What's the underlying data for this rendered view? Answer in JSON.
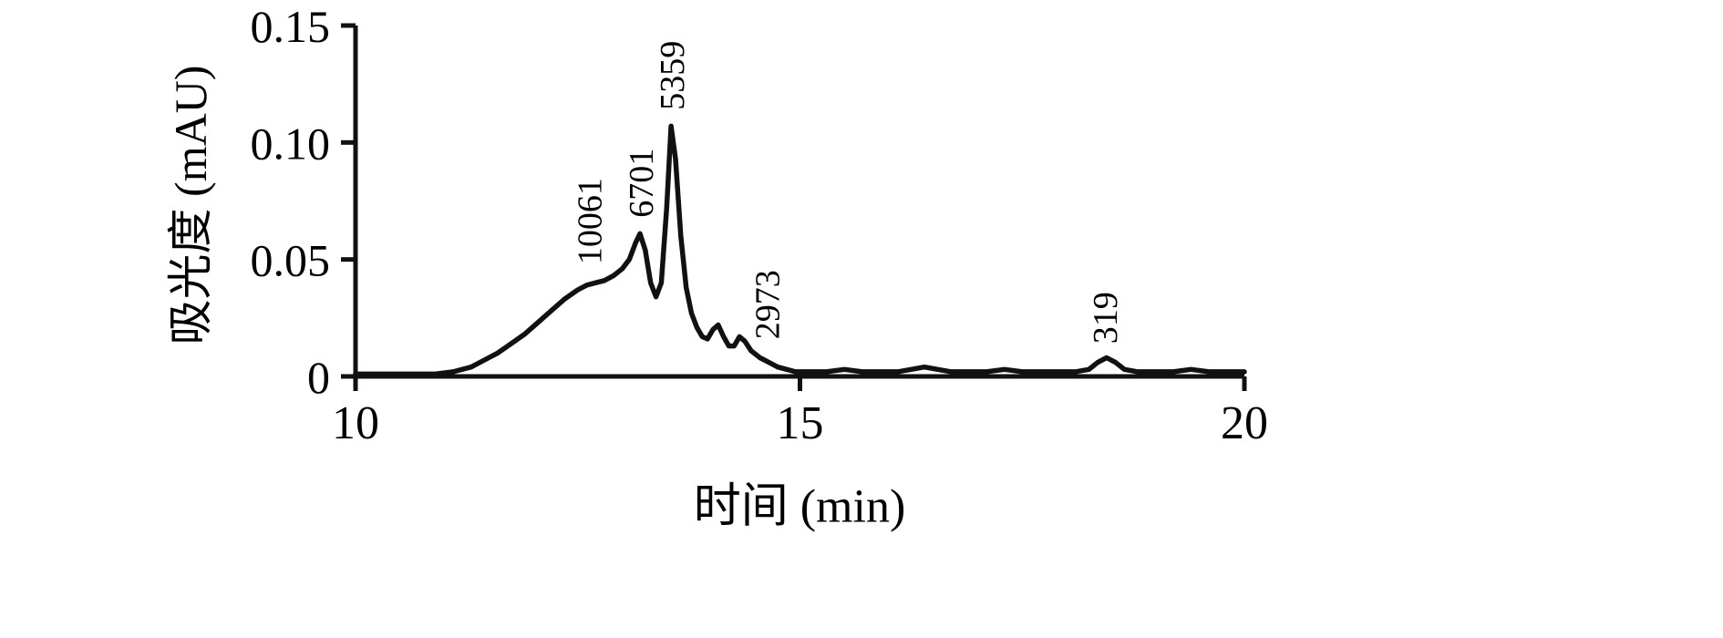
{
  "chart_data": {
    "type": "line",
    "title": "",
    "xlabel": "时间 (min)",
    "ylabel": "吸光度 (mAU)",
    "xlim": [
      10,
      20
    ],
    "ylim": [
      0,
      0.15
    ],
    "x_ticks": [
      10,
      15,
      20
    ],
    "x_tick_labels": [
      "10",
      "15",
      "20"
    ],
    "y_ticks": [
      0,
      0.05,
      0.1,
      0.15
    ],
    "y_tick_labels": [
      "0",
      "0.05",
      "0.10",
      "0.15"
    ],
    "grid": false,
    "legend": false,
    "line_color": "#111111",
    "axis_color": "#111111",
    "series": [
      {
        "name": "chromatogram",
        "x": [
          10.0,
          10.3,
          10.6,
          10.9,
          11.1,
          11.3,
          11.45,
          11.6,
          11.75,
          11.9,
          12.05,
          12.2,
          12.35,
          12.5,
          12.6,
          12.7,
          12.8,
          12.9,
          13.0,
          13.08,
          13.15,
          13.2,
          13.26,
          13.32,
          13.38,
          13.44,
          13.5,
          13.55,
          13.6,
          13.66,
          13.72,
          13.78,
          13.84,
          13.9,
          13.96,
          14.02,
          14.08,
          14.14,
          14.2,
          14.26,
          14.32,
          14.38,
          14.45,
          14.55,
          14.65,
          14.75,
          14.85,
          14.95,
          15.1,
          15.3,
          15.5,
          15.7,
          15.9,
          16.1,
          16.25,
          16.4,
          16.55,
          16.7,
          16.9,
          17.1,
          17.3,
          17.5,
          17.7,
          17.9,
          18.1,
          18.25,
          18.35,
          18.45,
          18.55,
          18.65,
          18.8,
          19.0,
          19.2,
          19.4,
          19.6,
          19.8,
          20.0
        ],
        "y": [
          0.001,
          0.001,
          0.001,
          0.001,
          0.002,
          0.004,
          0.007,
          0.01,
          0.014,
          0.018,
          0.023,
          0.028,
          0.033,
          0.037,
          0.039,
          0.04,
          0.041,
          0.043,
          0.046,
          0.05,
          0.057,
          0.061,
          0.054,
          0.04,
          0.034,
          0.04,
          0.072,
          0.107,
          0.093,
          0.06,
          0.038,
          0.027,
          0.021,
          0.017,
          0.016,
          0.02,
          0.022,
          0.017,
          0.013,
          0.013,
          0.017,
          0.015,
          0.011,
          0.008,
          0.006,
          0.004,
          0.003,
          0.002,
          0.002,
          0.002,
          0.003,
          0.002,
          0.002,
          0.002,
          0.003,
          0.004,
          0.003,
          0.002,
          0.002,
          0.002,
          0.003,
          0.002,
          0.002,
          0.002,
          0.002,
          0.003,
          0.006,
          0.008,
          0.006,
          0.003,
          0.002,
          0.002,
          0.002,
          0.003,
          0.002,
          0.002,
          0.002
        ]
      }
    ],
    "peak_labels": [
      {
        "text": "10061",
        "x": 12.62,
        "y": 0.044
      },
      {
        "text": "6701",
        "x": 13.2,
        "y": 0.064
      },
      {
        "text": "5359",
        "x": 13.55,
        "y": 0.11
      },
      {
        "text": "2973",
        "x": 14.62,
        "y": 0.012
      },
      {
        "text": "319",
        "x": 18.42,
        "y": 0.01
      }
    ]
  }
}
